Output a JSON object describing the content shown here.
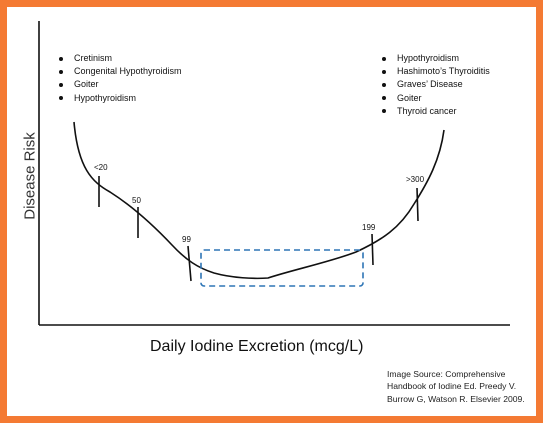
{
  "axes": {
    "y_title": "Disease Risk",
    "x_title": "Daily Iodine Excretion (mcg/L)"
  },
  "deficiency_conditions": [
    "Cretinism",
    "Congenital Hypothyroidism",
    "Goiter",
    "Hypothyroidism"
  ],
  "excess_conditions": [
    "Hypothyroidism",
    "Hashimoto’s Thyroiditis",
    "Graves’ Disease",
    "Goiter",
    "Thyroid cancer"
  ],
  "thresholds": [
    "<20",
    "50",
    "99",
    "199",
    ">300"
  ],
  "optimal_range": {
    "from": "99",
    "to": "199",
    "style": "dashed"
  },
  "source": {
    "line1": "Image Source: Comprehensive",
    "line2": "Handbook of Iodine Ed. Preedy V.",
    "line3": "Burrow G, Watson R. Elsevier 2009."
  },
  "colors": {
    "border": "#f47a33",
    "curve": "#111111",
    "optimal_box": "#2e75b6"
  }
}
